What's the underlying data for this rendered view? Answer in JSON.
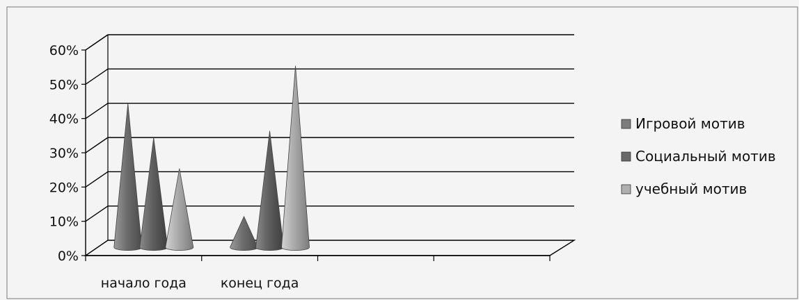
{
  "chart_data": {
    "type": "bar",
    "bar_shape": "cone",
    "three_d": true,
    "categories": [
      "начало года",
      "конец года",
      "",
      ""
    ],
    "series": [
      {
        "name": "Игровой мотив",
        "values": [
          42,
          9,
          null,
          null
        ]
      },
      {
        "name": "Социальный мотив",
        "values": [
          32,
          34,
          null,
          null
        ]
      },
      {
        "name": "учебный мотив",
        "values": [
          23,
          53,
          null,
          null
        ]
      }
    ],
    "y_tick_labels": [
      "0%",
      "10%",
      "20%",
      "30%",
      "40%",
      "50%",
      "60%"
    ],
    "ylim": [
      0,
      60
    ],
    "y_unit": "%",
    "grid": true,
    "legend_position": "right",
    "title": "",
    "xlabel": "",
    "ylabel": ""
  },
  "colors": {
    "series": [
      "#7d7d7d",
      "#6a6a6a",
      "#b0b0b0"
    ],
    "grid": "#000000",
    "background": "#f4f4f4"
  }
}
